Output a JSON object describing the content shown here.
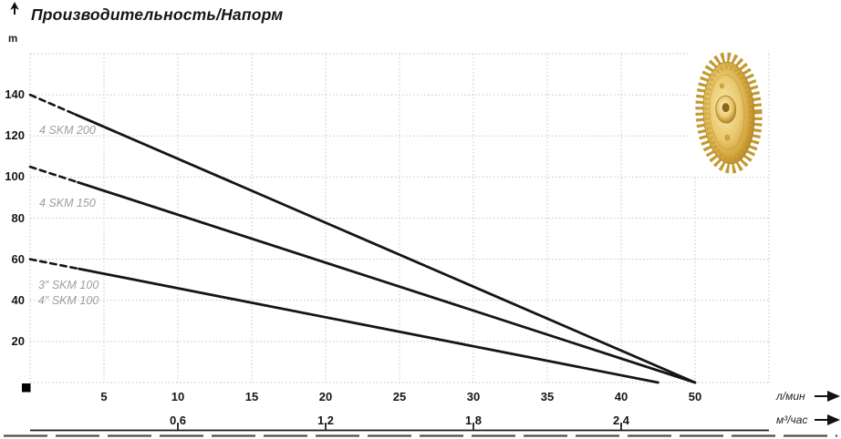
{
  "title": "Производительность/Напорм",
  "y_unit": "m",
  "axis_units": {
    "primary": "л/мин",
    "secondary": "м³/час"
  },
  "curve_labels": {
    "skm200": "4 SKM 200",
    "skm150": "4 SKM 150",
    "skm100_3": "3″ SKM 100",
    "skm100_4": "4″ SKM 100"
  },
  "icons": {
    "up_arrow": "axis-arrow-up",
    "right_arrow_primary": "axis-arrow-right",
    "right_arrow_secondary": "axis-arrow-right",
    "impeller": "brass-pump-impeller-photo",
    "origin_marker": "black-square"
  },
  "colors": {
    "curve": "#151515",
    "grid": "#c4c4c4",
    "text": "#1a1a1a",
    "muted_label": "#9e9e9e",
    "axis_line": "#1a1a1a",
    "bottom_dashed": "#4d4d4d",
    "impeller_gold": "#d9b355"
  },
  "chart_data": {
    "type": "line",
    "title": "Производительность/Напорм",
    "x_axis": {
      "label": "л/мин",
      "ticks": [
        5,
        10,
        15,
        20,
        25,
        30,
        35,
        40,
        50
      ],
      "range": [
        0,
        55
      ],
      "grid": true,
      "note": "tick 45 is not labeled; 50 sits on the gridline after 40"
    },
    "x_axis_secondary": {
      "label": "м³/час",
      "tick_labels": [
        "0,6",
        "1,2",
        "1,8",
        "2,4"
      ],
      "tick_values_lmin": [
        10,
        20,
        30,
        40
      ]
    },
    "y_axis": {
      "label": "m",
      "ticks": [
        20,
        40,
        60,
        80,
        100,
        120,
        140
      ],
      "range": [
        0,
        160
      ],
      "grid": true
    },
    "series": [
      {
        "name": "4 SKM 200",
        "points": [
          [
            0,
            140
          ],
          [
            50,
            0
          ]
        ],
        "dashed_until_x": 3.4
      },
      {
        "name": "4 SKM 150",
        "points": [
          [
            0,
            105
          ],
          [
            50,
            0
          ]
        ],
        "dashed_until_x": 3.6
      },
      {
        "name": "3″ SKM 100 / 4″ SKM 100",
        "points": [
          [
            0,
            60
          ],
          [
            45,
            0
          ]
        ],
        "dashed_until_x": 3.5
      }
    ]
  }
}
